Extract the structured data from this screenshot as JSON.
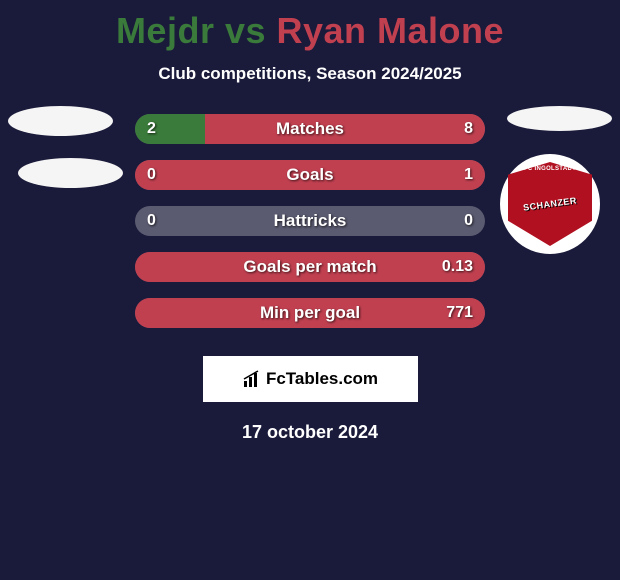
{
  "title": {
    "player1": "Mejdr",
    "vs": " vs ",
    "player2": "Ryan Malone",
    "player1_color": "#3a7a3a",
    "player2_color": "#c04050"
  },
  "subtitle": "Club competitions, Season 2024/2025",
  "club_badge": {
    "top_text": "FC INGOLSTADT",
    "mid_text": "SCHANZER"
  },
  "bars": [
    {
      "label": "Matches",
      "left": "2",
      "right": "8",
      "left_pct": 20,
      "right_pct": 80
    },
    {
      "label": "Goals",
      "left": "0",
      "right": "1",
      "left_pct": 0,
      "right_pct": 100
    },
    {
      "label": "Hattricks",
      "left": "0",
      "right": "0",
      "left_pct": 0,
      "right_pct": 0
    },
    {
      "label": "Goals per match",
      "left": "",
      "right": "0.13",
      "left_pct": 0,
      "right_pct": 100
    },
    {
      "label": "Min per goal",
      "left": "",
      "right": "771",
      "left_pct": 0,
      "right_pct": 100
    }
  ],
  "bar_style": {
    "left_color": "#3a7a3a",
    "right_color": "#c04050",
    "base_color": "#5a5a70",
    "height": 30,
    "radius": 15,
    "label_fontsize": 17,
    "value_fontsize": 16
  },
  "footer": {
    "text": "FcTables.com"
  },
  "date": "17 october 2024",
  "colors": {
    "background": "#1a1a3a",
    "text": "#ffffff",
    "badge_bg": "#f5f5f5",
    "club_red": "#b01020"
  }
}
